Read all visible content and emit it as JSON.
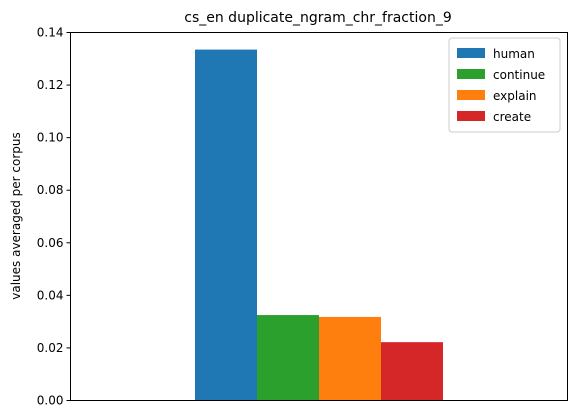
{
  "chart_data": {
    "type": "bar",
    "title": "cs_en duplicate_ngram_chr_fraction_9",
    "xlabel": "",
    "ylabel": "values averaged per corpus",
    "categories": [
      ""
    ],
    "series": [
      {
        "name": "human",
        "values": [
          0.1335
        ],
        "color": "#1f77b4"
      },
      {
        "name": "continue",
        "values": [
          0.0325
        ],
        "color": "#2ca02c"
      },
      {
        "name": "explain",
        "values": [
          0.0318
        ],
        "color": "#ff7f0e"
      },
      {
        "name": "create",
        "values": [
          0.0222
        ],
        "color": "#d62728"
      }
    ],
    "ylim": [
      0,
      0.14
    ],
    "yticks": [
      0.0,
      0.02,
      0.04,
      0.06,
      0.08,
      0.1,
      0.12,
      0.14
    ],
    "ytick_labels": [
      "0.00",
      "0.02",
      "0.04",
      "0.06",
      "0.08",
      "0.10",
      "0.12",
      "0.14"
    ],
    "legend_position": "top-right",
    "grid": false
  }
}
